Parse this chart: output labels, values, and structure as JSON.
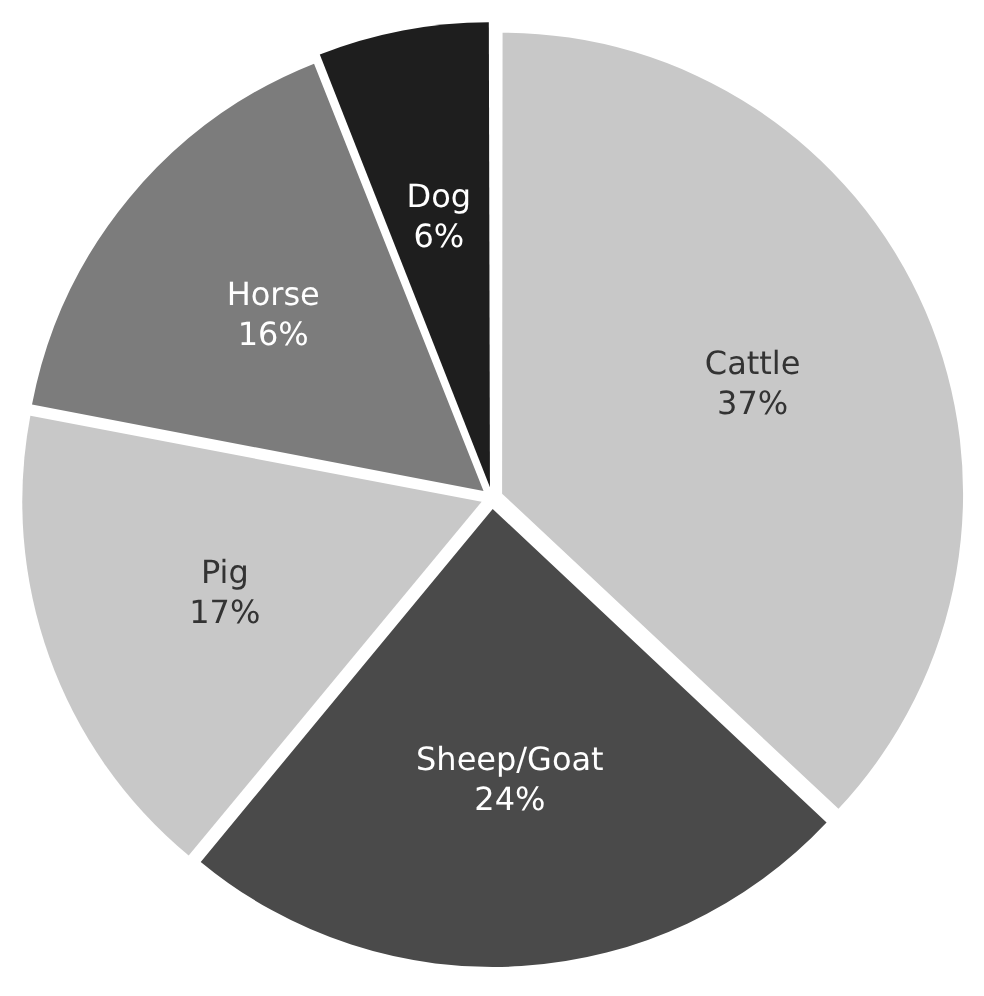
{
  "chart_data": {
    "type": "pie",
    "categories": [
      "Cattle",
      "Sheep/Goat",
      "Pig",
      "Horse",
      "Dog"
    ],
    "values": [
      37,
      24,
      17,
      16,
      6
    ],
    "value_labels": [
      "37%",
      "24%",
      "17%",
      "16%",
      "6%"
    ],
    "colors": [
      "#c8c8c8",
      "#4a4a4a",
      "#c8c8c8",
      "#7c7c7c",
      "#1e1e1e"
    ],
    "legend": false
  }
}
